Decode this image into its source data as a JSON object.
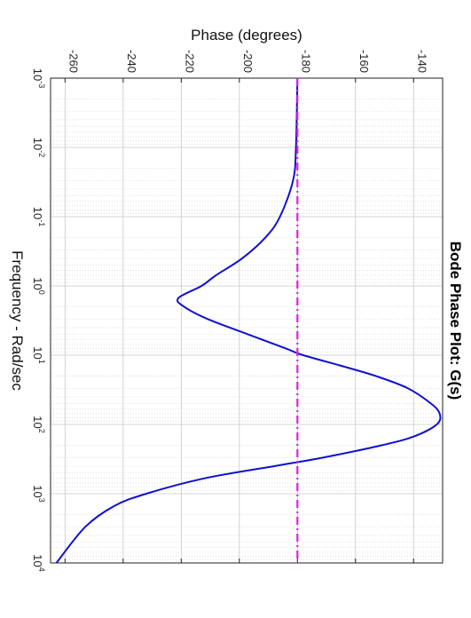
{
  "chart_data": {
    "type": "line",
    "title": "Bode Phase Plot: G(s)",
    "xlabel": "Frequency - Rad/sec",
    "ylabel": "Phase (degrees)",
    "x_scale": "log",
    "xlim": [
      0.001,
      10000
    ],
    "ylim": [
      -265,
      -130
    ],
    "x_ticks": [
      {
        "base": "10",
        "exp": "-3"
      },
      {
        "base": "10",
        "exp": "-2"
      },
      {
        "base": "10",
        "exp": "-1"
      },
      {
        "base": "10",
        "exp": "0"
      },
      {
        "base": "10",
        "exp": "1"
      },
      {
        "base": "10",
        "exp": "2"
      },
      {
        "base": "10",
        "exp": "3"
      },
      {
        "base": "10",
        "exp": "4"
      }
    ],
    "y_ticks": [
      "-260",
      "-240",
      "-220",
      "-200",
      "-180",
      "-160",
      "-140"
    ],
    "grid": true,
    "orientation": "rotated 90 degrees clockwise",
    "series": [
      {
        "style": "solid",
        "color": "#1010d0",
        "x": [
          0.001,
          0.01,
          0.03,
          0.1,
          0.2,
          0.4,
          0.7,
          1.0,
          1.5,
          2.0,
          3.0,
          5.0,
          8.0,
          10,
          15,
          20,
          30,
          50,
          70,
          100,
          150,
          200,
          300,
          400,
          600,
          1000,
          1500,
          3000,
          10000
        ],
        "y": [
          -180,
          -180.5,
          -181.5,
          -186,
          -191,
          -199,
          -208,
          -213,
          -221,
          -219,
          -211,
          -197,
          -184,
          -178,
          -163,
          -153,
          -142,
          -134,
          -131,
          -132,
          -140,
          -151,
          -171,
          -188,
          -212,
          -232,
          -243,
          -253,
          -263
        ]
      },
      {
        "style": "dash-dot",
        "color": "#e020e0",
        "x": [
          0.001,
          10000
        ],
        "y": [
          -180,
          -180
        ]
      }
    ]
  }
}
